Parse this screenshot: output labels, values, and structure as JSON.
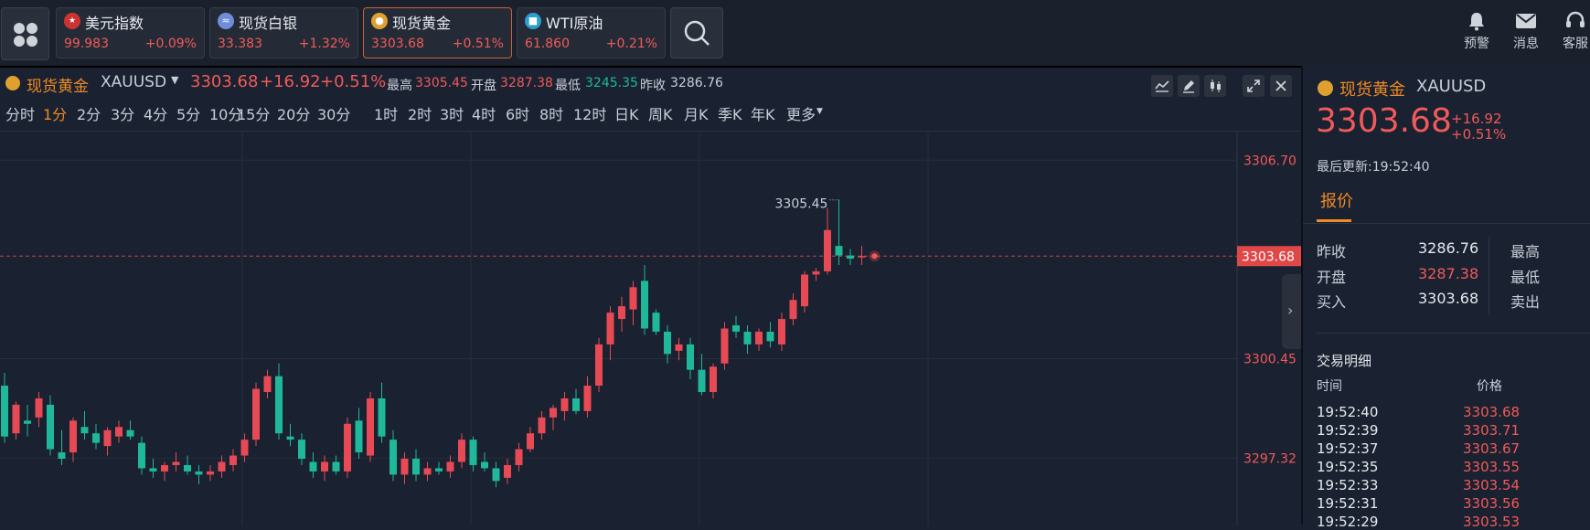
{
  "topbar": {
    "quotes": [
      {
        "name": "美元指数",
        "price": "99.983",
        "change": "+0.09%",
        "icon": "us-flag-icon",
        "active": false
      },
      {
        "name": "现货白银",
        "price": "33.383",
        "change": "+1.32%",
        "icon": "silver-icon",
        "active": false
      },
      {
        "name": "现货黄金",
        "price": "3303.68",
        "change": "+0.51%",
        "icon": "gold-icon",
        "active": true
      },
      {
        "name": "WTI原油",
        "price": "61.860",
        "change": "+0.21%",
        "icon": "oil-icon",
        "active": false
      }
    ],
    "actions": [
      {
        "label": "预警",
        "icon": "bell-icon"
      },
      {
        "label": "消息",
        "icon": "mail-icon"
      },
      {
        "label": "客服",
        "icon": "headset-icon"
      }
    ]
  },
  "chart_header": {
    "name": "现货黄金",
    "code": "XAUUSD",
    "price": "3303.68",
    "change": "+16.92",
    "change_pct": "+0.51%",
    "high_label": "最高",
    "high": "3305.45",
    "open_label": "开盘",
    "open": "3287.38",
    "low_label": "最低",
    "low": "3245.35",
    "prev_label": "昨收",
    "prev": "3286.76"
  },
  "periods": [
    "分时",
    "1分",
    "2分",
    "3分",
    "4分",
    "5分",
    "10分",
    "15分",
    "20分",
    "30分",
    "1时",
    "2时",
    "3时",
    "4时",
    "6时",
    "8时",
    "12时",
    "日K",
    "周K",
    "月K",
    "季K",
    "年K",
    "更多"
  ],
  "active_period": "1分",
  "chart_data": {
    "type": "candlestick",
    "y_ticks": [
      "3306.70",
      "3300.45",
      "3297.32"
    ],
    "current_price": "3303.68",
    "high_marker": "3305.45",
    "ylim": [
      3295.2,
      3307.6
    ],
    "candles": [
      [
        3299.6,
        3300.0,
        3297.8,
        3298.0
      ],
      [
        3298.1,
        3299.1,
        3297.9,
        3299.0
      ],
      [
        3298.5,
        3299.0,
        3298.0,
        3298.4
      ],
      [
        3298.6,
        3299.4,
        3298.3,
        3299.2
      ],
      [
        3299.0,
        3299.3,
        3297.4,
        3297.6
      ],
      [
        3297.5,
        3298.2,
        3297.1,
        3297.3
      ],
      [
        3297.5,
        3298.6,
        3297.2,
        3298.5
      ],
      [
        3298.3,
        3298.8,
        3297.9,
        3298.1
      ],
      [
        3298.1,
        3298.4,
        3297.6,
        3297.8
      ],
      [
        3297.7,
        3298.3,
        3297.4,
        3298.2
      ],
      [
        3298.0,
        3298.5,
        3297.8,
        3298.3
      ],
      [
        3298.2,
        3298.5,
        3297.9,
        3298.0
      ],
      [
        3297.8,
        3298.0,
        3296.8,
        3297.0
      ],
      [
        3297.0,
        3297.3,
        3296.7,
        3296.9
      ],
      [
        3296.9,
        3297.2,
        3296.6,
        3297.1
      ],
      [
        3297.1,
        3297.5,
        3296.9,
        3297.2
      ],
      [
        3297.1,
        3297.4,
        3296.8,
        3296.9
      ],
      [
        3296.9,
        3297.1,
        3296.5,
        3296.8
      ],
      [
        3296.8,
        3297.1,
        3296.6,
        3296.9
      ],
      [
        3296.9,
        3297.4,
        3296.7,
        3297.2
      ],
      [
        3297.1,
        3297.6,
        3296.9,
        3297.4
      ],
      [
        3297.4,
        3298.1,
        3297.2,
        3297.9
      ],
      [
        3297.9,
        3299.7,
        3297.7,
        3299.5
      ],
      [
        3299.4,
        3300.1,
        3299.2,
        3299.9
      ],
      [
        3299.9,
        3300.3,
        3297.9,
        3298.1
      ],
      [
        3298.0,
        3298.4,
        3297.7,
        3297.9
      ],
      [
        3297.9,
        3298.1,
        3297.1,
        3297.3
      ],
      [
        3297.2,
        3297.5,
        3296.7,
        3296.9
      ],
      [
        3296.9,
        3297.4,
        3296.6,
        3297.2
      ],
      [
        3297.2,
        3297.4,
        3296.8,
        3296.9
      ],
      [
        3296.9,
        3298.6,
        3296.7,
        3298.4
      ],
      [
        3298.5,
        3298.9,
        3297.3,
        3297.5
      ],
      [
        3297.4,
        3299.4,
        3297.2,
        3299.2
      ],
      [
        3299.2,
        3299.7,
        3297.8,
        3298.0
      ],
      [
        3297.9,
        3298.2,
        3296.6,
        3296.8
      ],
      [
        3296.8,
        3297.5,
        3296.5,
        3297.3
      ],
      [
        3297.3,
        3297.6,
        3296.6,
        3296.8
      ],
      [
        3296.8,
        3297.2,
        3296.6,
        3297.0
      ],
      [
        3297.0,
        3297.2,
        3296.8,
        3296.9
      ],
      [
        3296.9,
        3297.4,
        3296.7,
        3297.2
      ],
      [
        3297.2,
        3298.1,
        3297.0,
        3297.9
      ],
      [
        3297.9,
        3298.0,
        3296.9,
        3297.1
      ],
      [
        3297.2,
        3297.5,
        3296.9,
        3297.0
      ],
      [
        3297.0,
        3297.2,
        3296.4,
        3296.6
      ],
      [
        3296.7,
        3297.3,
        3296.5,
        3297.1
      ],
      [
        3297.1,
        3297.8,
        3296.9,
        3297.6
      ],
      [
        3297.6,
        3298.3,
        3297.5,
        3298.1
      ],
      [
        3298.1,
        3298.8,
        3297.9,
        3298.6
      ],
      [
        3298.6,
        3299.0,
        3298.2,
        3298.9
      ],
      [
        3298.8,
        3299.4,
        3298.5,
        3299.2
      ],
      [
        3299.2,
        3299.5,
        3298.7,
        3298.8
      ],
      [
        3298.8,
        3299.9,
        3298.6,
        3299.6
      ],
      [
        3299.6,
        3301.1,
        3299.4,
        3300.9
      ],
      [
        3300.9,
        3302.1,
        3300.4,
        3301.9
      ],
      [
        3301.7,
        3302.4,
        3301.3,
        3302.1
      ],
      [
        3302.0,
        3302.9,
        3301.5,
        3302.7
      ],
      [
        3302.9,
        3303.4,
        3301.2,
        3301.4
      ],
      [
        3301.9,
        3302.0,
        3301.2,
        3301.3
      ],
      [
        3301.3,
        3301.5,
        3300.3,
        3300.6
      ],
      [
        3300.7,
        3301.1,
        3300.4,
        3300.9
      ],
      [
        3300.9,
        3301.1,
        3299.8,
        3300.1
      ],
      [
        3300.1,
        3300.6,
        3299.3,
        3299.4
      ],
      [
        3299.4,
        3300.3,
        3299.2,
        3300.2
      ],
      [
        3300.3,
        3301.6,
        3300.1,
        3301.4
      ],
      [
        3301.5,
        3301.8,
        3301.1,
        3301.3
      ],
      [
        3301.3,
        3301.5,
        3300.6,
        3300.9
      ],
      [
        3300.9,
        3301.4,
        3300.7,
        3301.3
      ],
      [
        3301.3,
        3301.6,
        3300.8,
        3301.0
      ],
      [
        3300.9,
        3301.9,
        3300.7,
        3301.7
      ],
      [
        3301.7,
        3302.5,
        3301.5,
        3302.3
      ],
      [
        3302.1,
        3303.2,
        3301.9,
        3303.1
      ],
      [
        3303.1,
        3303.3,
        3302.9,
        3303.2
      ],
      [
        3303.2,
        3305.2,
        3303.1,
        3304.5
      ],
      [
        3304.0,
        3305.45,
        3303.4,
        3303.7
      ],
      [
        3303.7,
        3303.9,
        3303.4,
        3303.6
      ],
      [
        3303.68,
        3304.0,
        3303.4,
        3303.68
      ]
    ]
  },
  "right_panel": {
    "name": "现货黄金",
    "code": "XAUUSD",
    "price": "3303.68",
    "change": "+16.92",
    "change_pct": "+0.51%",
    "updated": "最后更新:19:52:40",
    "tab": "报价",
    "rows": [
      {
        "label": "昨收",
        "value": "3286.76",
        "label2": "最高"
      },
      {
        "label": "开盘",
        "value": "3287.38",
        "label2": "最低"
      },
      {
        "label": "买入",
        "value": "3303.68",
        "label2": "卖出"
      }
    ],
    "trades_title": "交易明细",
    "trades_head_time": "时间",
    "trades_head_price": "价格",
    "trades": [
      {
        "time": "19:52:40",
        "price": "3303.68"
      },
      {
        "time": "19:52:39",
        "price": "3303.71"
      },
      {
        "time": "19:52:37",
        "price": "3303.67"
      },
      {
        "time": "19:52:35",
        "price": "3303.55"
      },
      {
        "time": "19:52:33",
        "price": "3303.54"
      },
      {
        "time": "19:52:31",
        "price": "3303.56"
      },
      {
        "time": "19:52:29",
        "price": "3303.53"
      }
    ]
  }
}
